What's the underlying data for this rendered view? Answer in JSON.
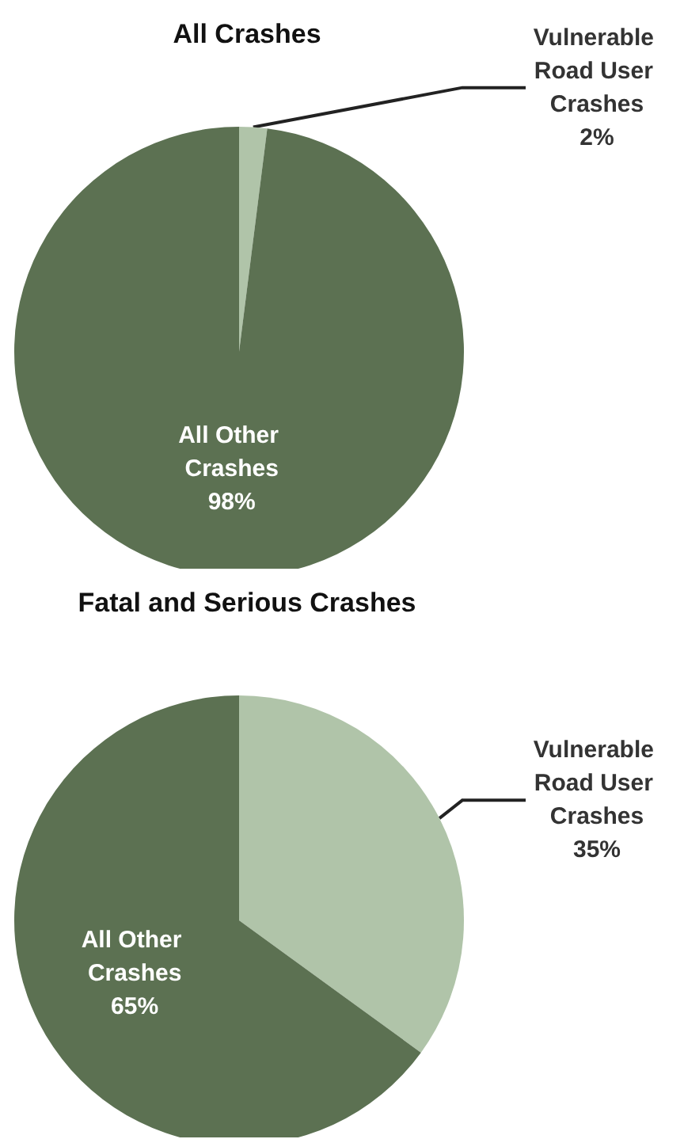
{
  "chart_data": [
    {
      "type": "pie",
      "title": "All Crashes",
      "categories": [
        "Vulnerable Road User Crashes",
        "All Other Crashes"
      ],
      "values": [
        2,
        98
      ],
      "colors": [
        "#b0c4a9",
        "#5c7152"
      ],
      "value_labels": [
        "2%",
        "98%"
      ]
    },
    {
      "type": "pie",
      "title": "Fatal and Serious Crashes",
      "categories": [
        "Vulnerable Road User Crashes",
        "All Other Crashes"
      ],
      "values": [
        35,
        65
      ],
      "colors": [
        "#b0c4a9",
        "#5c7152"
      ],
      "value_labels": [
        "35%",
        "65%"
      ]
    }
  ]
}
